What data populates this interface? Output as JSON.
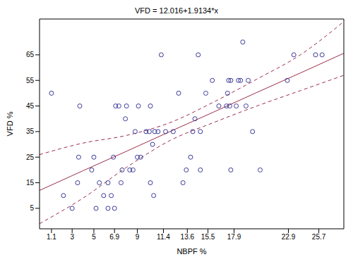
{
  "chart_data": {
    "type": "scatter",
    "title": "VFD = 12.016+1.9134*x",
    "x_label": "NBPF %",
    "y_label": "VFD %",
    "xlim": [
      0,
      28
    ],
    "ylim": [
      -3,
      79
    ],
    "xticks": [
      1.1,
      3.0,
      5.0,
      6.9,
      9.0,
      11.4,
      13.6,
      15.5,
      17.9,
      22.9,
      25.7
    ],
    "yticks": [
      5,
      15,
      25,
      35,
      45,
      55,
      65
    ],
    "series": [
      {
        "type": "scatter",
        "marker": "circle",
        "color": "#3b3b98",
        "x": [
          1.1,
          2.2,
          3.0,
          3.5,
          3.6,
          3.7,
          4.8,
          5.0,
          5.2,
          5.5,
          5.9,
          6.3,
          6.3,
          6.6,
          6.8,
          6.9,
          7.0,
          7.3,
          7.5,
          7.6,
          7.9,
          8.0,
          8.3,
          8.6,
          8.8,
          9.0,
          9.1,
          9.3,
          9.8,
          10.1,
          10.2,
          10.2,
          10.4,
          10.5,
          10.6,
          10.9,
          11.2,
          11.6,
          12.3,
          12.8,
          13.2,
          13.5,
          13.9,
          14.1,
          14.3,
          14.6,
          14.8,
          14.8,
          15.3,
          15.9,
          16.5,
          17.2,
          17.3,
          17.4,
          17.5,
          17.6,
          17.6,
          18.1,
          18.3,
          18.5,
          18.7,
          19.0,
          19.2,
          19.6,
          20.3,
          22.8,
          23.4,
          25.4,
          26.0
        ],
        "values": [
          50,
          10,
          5,
          15,
          25,
          45,
          20,
          25,
          5,
          15,
          10,
          5,
          15,
          10,
          25,
          5,
          45,
          45,
          15,
          20,
          40,
          45,
          20,
          20,
          35,
          25,
          45,
          25,
          35,
          35,
          15,
          45,
          30,
          10,
          35,
          35,
          65,
          35,
          35,
          50,
          15,
          20,
          25,
          35,
          40,
          65,
          35,
          20,
          50,
          55,
          45,
          45,
          50,
          55,
          45,
          20,
          55,
          45,
          55,
          55,
          70,
          45,
          55,
          35,
          20,
          55,
          65,
          65,
          65
        ]
      },
      {
        "type": "line",
        "line_style": "solid",
        "color": "#9b2d4a",
        "x": [
          0,
          4,
          8,
          12,
          16,
          20,
          24,
          28
        ],
        "values": [
          12.0,
          19.7,
          27.3,
          35.0,
          42.6,
          50.3,
          57.9,
          65.6
        ]
      },
      {
        "type": "line",
        "line_style": "dashed",
        "color": "#9b2d4a",
        "x": [
          0,
          4,
          8,
          12,
          16,
          20,
          24,
          28
        ],
        "values": [
          26,
          30.5,
          33.5,
          38.5,
          46.5,
          55.5,
          65,
          78
        ]
      },
      {
        "type": "line",
        "line_style": "dashed",
        "color": "#9b2d4a",
        "x": [
          0,
          4,
          8,
          12,
          16,
          20,
          24,
          28
        ],
        "values": [
          -1,
          9,
          21,
          31.5,
          38.5,
          45,
          51,
          57
        ]
      }
    ]
  }
}
